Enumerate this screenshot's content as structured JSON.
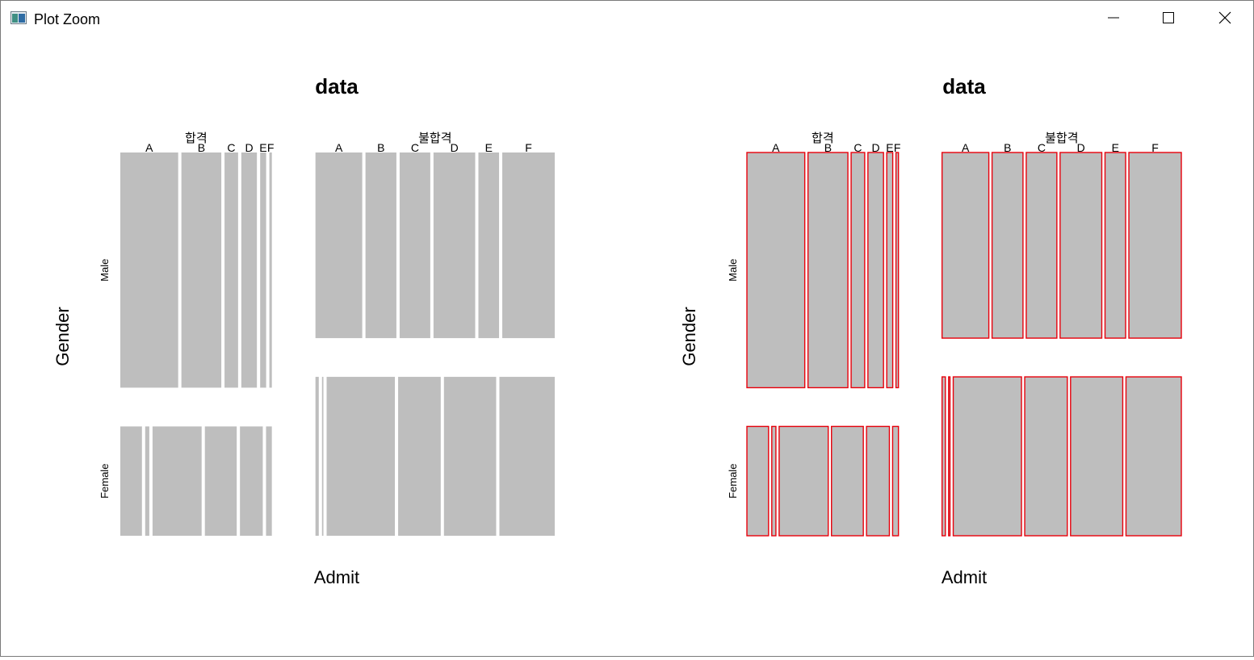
{
  "window": {
    "title": "Plot Zoom",
    "icon": "r-plot-window-icon",
    "controls": [
      "minimize-icon",
      "maximize-icon",
      "close-icon"
    ]
  },
  "chart_data": [
    {
      "type": "mosaic",
      "title": "data",
      "xlabel": "Admit",
      "ylabel": "Gender",
      "admit_levels": [
        "합격",
        "불합격"
      ],
      "gender_levels": [
        "Male",
        "Female"
      ],
      "dept_levels": [
        "A",
        "B",
        "C",
        "D",
        "E",
        "F"
      ],
      "fill": "#bebebe",
      "border": "none",
      "counts": {
        "합격": {
          "Male": [
            512,
            353,
            120,
            138,
            53,
            22
          ],
          "Female": [
            89,
            17,
            202,
            131,
            94,
            24
          ]
        },
        "불합격": {
          "Male": [
            313,
            207,
            205,
            279,
            138,
            351
          ],
          "Female": [
            19,
            8,
            391,
            244,
            299,
            317
          ]
        }
      }
    },
    {
      "type": "mosaic",
      "title": "data",
      "xlabel": "Admit",
      "ylabel": "Gender",
      "admit_levels": [
        "합격",
        "불합격"
      ],
      "gender_levels": [
        "Male",
        "Female"
      ],
      "dept_levels": [
        "A",
        "B",
        "C",
        "D",
        "E",
        "F"
      ],
      "fill": "#bebebe",
      "border": "#e8000b",
      "counts": {
        "합격": {
          "Male": [
            512,
            353,
            120,
            138,
            53,
            22
          ],
          "Female": [
            89,
            17,
            202,
            131,
            94,
            24
          ]
        },
        "불합격": {
          "Male": [
            313,
            207,
            205,
            279,
            138,
            351
          ],
          "Female": [
            19,
            8,
            391,
            244,
            299,
            317
          ]
        }
      }
    }
  ]
}
